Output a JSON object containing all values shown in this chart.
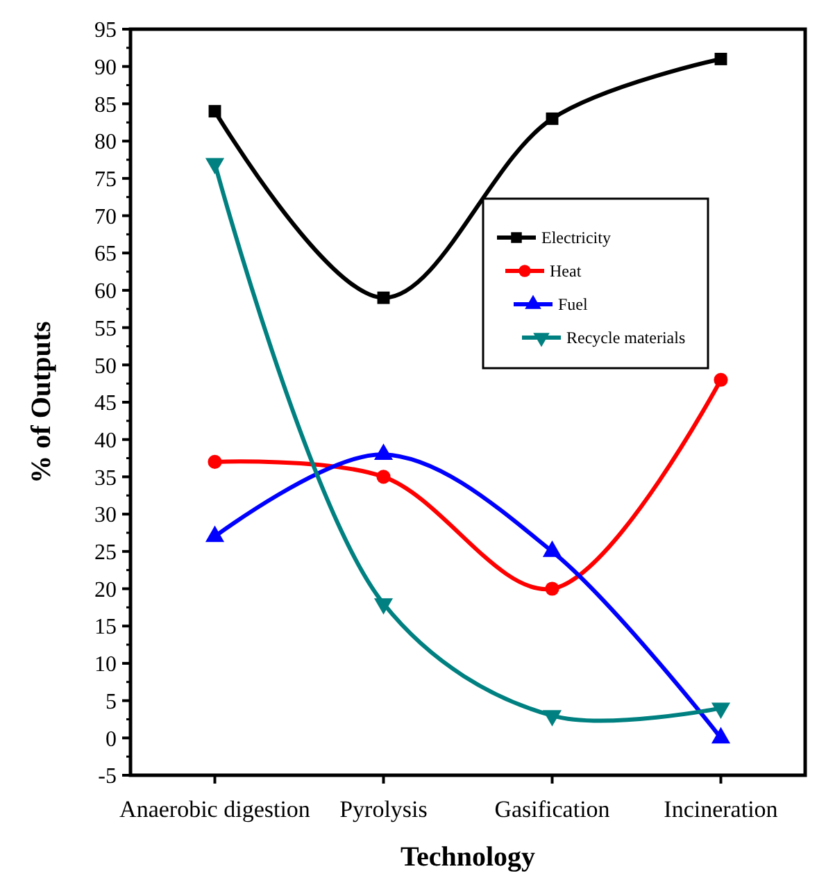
{
  "chart_data": {
    "type": "line",
    "xlabel": "Technology",
    "ylabel": "% of Outputs",
    "categories": [
      "Anaerobic digestion",
      "Pyrolysis",
      "Gasification",
      "Incineration"
    ],
    "series": [
      {
        "name": "Electricity",
        "color": "#000000",
        "marker": "square",
        "values": [
          84,
          59,
          83,
          91
        ]
      },
      {
        "name": "Heat",
        "color": "#ff0000",
        "marker": "circle",
        "values": [
          37,
          35,
          20,
          48
        ]
      },
      {
        "name": "Fuel",
        "color": "#0000ff",
        "marker": "triangle",
        "values": [
          27,
          38,
          25,
          0
        ]
      },
      {
        "name": "Recycle materials",
        "color": "#008080",
        "marker": "triangle-down",
        "values": [
          77,
          18,
          3,
          4
        ]
      }
    ],
    "ylim": [
      -5,
      95
    ],
    "yticks": [
      -5,
      0,
      5,
      10,
      15,
      20,
      25,
      30,
      35,
      40,
      45,
      50,
      55,
      60,
      65,
      70,
      75,
      80,
      85,
      90,
      95
    ],
    "grid": false,
    "legend": "right"
  }
}
